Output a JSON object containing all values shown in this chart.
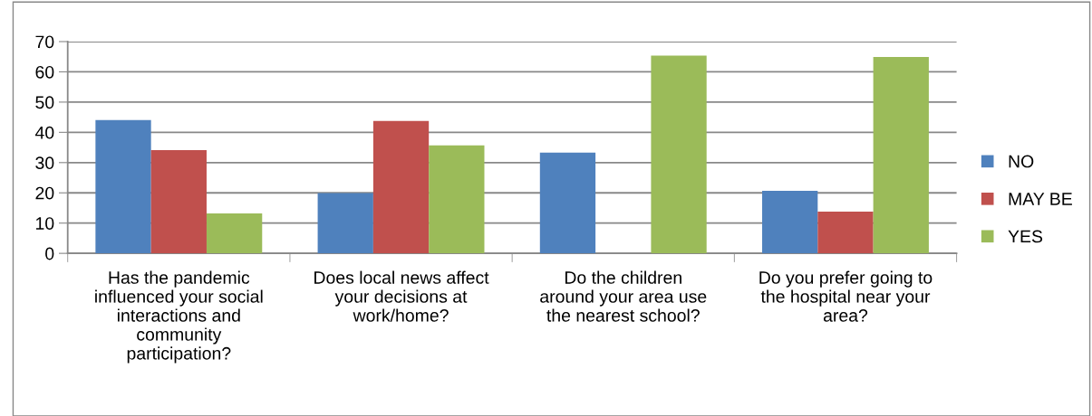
{
  "chart_data": {
    "type": "bar",
    "categories": [
      "Has the pandemic\ninfluenced your social\ninteractions and\ncommunity\nparticipation?",
      "Does local news affect\nyour decisions at\nwork/home?",
      "Do the children\naround your area use\nthe nearest school?",
      "Do you prefer going to\nthe hospital near your\narea?"
    ],
    "series": [
      {
        "name": "NO",
        "color": "#4f81bd",
        "values": [
          44.1,
          19.9,
          33.3,
          20.7
        ]
      },
      {
        "name": "MAY BE",
        "color": "#c0504d",
        "values": [
          34.1,
          43.8,
          0,
          13.8
        ]
      },
      {
        "name": "YES",
        "color": "#9bbb59",
        "values": [
          13.2,
          35.7,
          65.4,
          64.9
        ]
      }
    ],
    "ylim": [
      0,
      70
    ],
    "yticks": [
      0,
      10,
      20,
      30,
      40,
      50,
      60,
      70
    ],
    "grid": "y",
    "legend": "right"
  }
}
